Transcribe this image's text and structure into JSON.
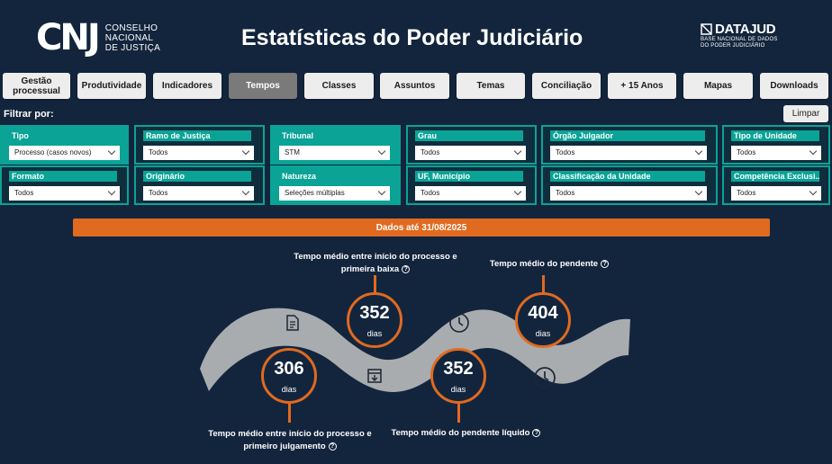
{
  "header": {
    "logo_mark": "CNJ",
    "logo_text": [
      "CONSELHO",
      "NACIONAL",
      "DE JUSTIÇA"
    ],
    "title": "Estatísticas do Poder Judiciário",
    "datajud_name": "DATAJUD",
    "datajud_sub": [
      "BASE NACIONAL DE DADOS",
      "DO PODER JUDICIÁRIO"
    ]
  },
  "tabs": [
    {
      "label": "Gestão processual",
      "active": false
    },
    {
      "label": "Produtividade",
      "active": false
    },
    {
      "label": "Indicadores",
      "active": false
    },
    {
      "label": "Tempos",
      "active": true
    },
    {
      "label": "Classes",
      "active": false
    },
    {
      "label": "Assuntos",
      "active": false
    },
    {
      "label": "Temas",
      "active": false
    },
    {
      "label": "Conciliação",
      "active": false
    },
    {
      "label": "+ 15 Anos",
      "active": false
    },
    {
      "label": "Mapas",
      "active": false
    },
    {
      "label": "Downloads",
      "active": false
    }
  ],
  "filters_label": "Filtrar por:",
  "clear_label": "Limpar",
  "filters": [
    {
      "label": "Tipo",
      "value": "Processo (casos novos)"
    },
    {
      "label": "Ramo de Justiça",
      "value": "Todos"
    },
    {
      "label": "Tribunal",
      "value": "STM"
    },
    {
      "label": "Grau",
      "value": "Todos"
    },
    {
      "label": "Órgão Julgador",
      "value": "Todos"
    },
    {
      "label": "Tipo de Unidade",
      "value": "Todos"
    },
    {
      "label": "Formato",
      "value": "Todos"
    },
    {
      "label": "Originário",
      "value": "Todos"
    },
    {
      "label": "Natureza",
      "value": "Seleções múltiplas"
    },
    {
      "label": "UF, Município",
      "value": "Todos"
    },
    {
      "label": "Classificação da Unidade",
      "value": "Todos"
    },
    {
      "label": "Competência Exclusi...",
      "value": "Todos"
    }
  ],
  "date_banner": "Dados até 31/08/2025",
  "metrics": [
    {
      "label_lines": [
        "Tempo médio entre início do processo e",
        "primeira baixa"
      ],
      "value": "352",
      "unit": "dias"
    },
    {
      "label_lines": [
        "Tempo médio do pendente"
      ],
      "value": "404",
      "unit": "dias"
    },
    {
      "label_lines": [
        "Tempo médio entre início do processo e",
        "primeiro julgamento"
      ],
      "value": "306",
      "unit": "dias"
    },
    {
      "label_lines": [
        "Tempo médio do pendente líquido"
      ],
      "value": "352",
      "unit": "dias"
    }
  ],
  "help_glyph": "?",
  "colors": {
    "background": "#13253d",
    "accent": "#e06a20",
    "filter_teal": "#0aa396",
    "road": "#a9acaf"
  },
  "icons": [
    "document-icon",
    "clock-icon",
    "archive-box-icon",
    "clock-icon"
  ]
}
